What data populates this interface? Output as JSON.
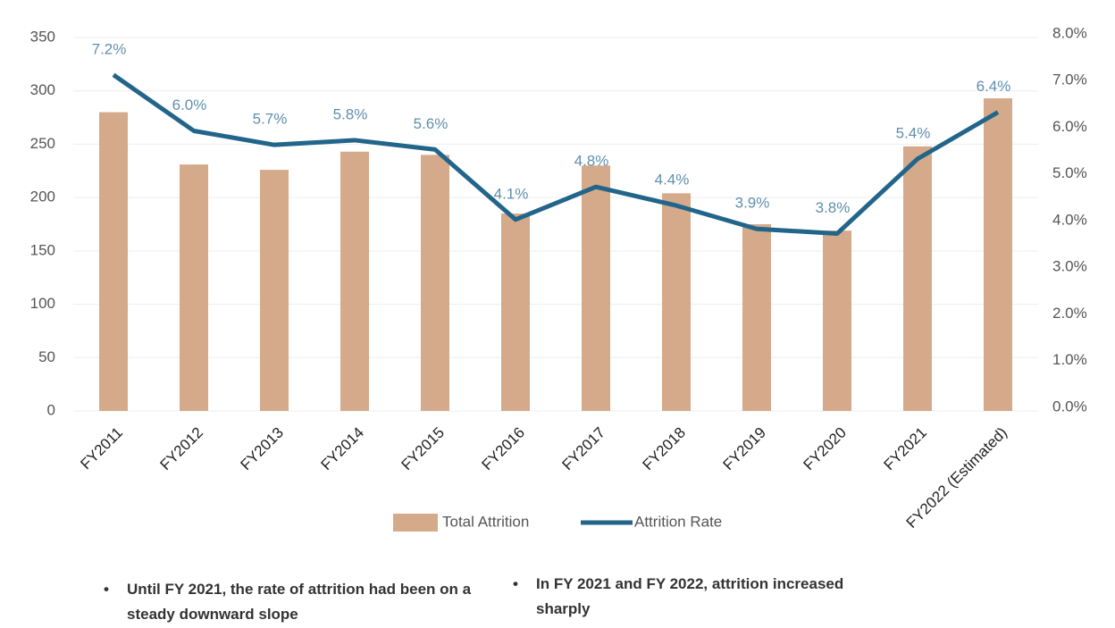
{
  "chart_data": {
    "type": "bar_line",
    "categories": [
      "FY2011",
      "FY2012",
      "FY2013",
      "FY2014",
      "FY2015",
      "FY2016",
      "FY2017",
      "FY2018",
      "FY2019",
      "FY2020",
      "FY2021",
      "FY2022 (Estimated)"
    ],
    "series": [
      {
        "name": "Total Attrition",
        "type": "bar",
        "color": "#d5aa8a",
        "values": [
          280,
          231,
          226,
          243,
          240,
          185,
          230,
          204,
          175,
          169,
          248,
          293
        ]
      },
      {
        "name": "Attrition Rate",
        "type": "line",
        "axis": "y2",
        "color": "#22658a",
        "values": [
          7.2,
          6.0,
          5.7,
          5.8,
          5.6,
          4.1,
          4.8,
          4.4,
          3.9,
          3.8,
          5.4,
          6.4
        ],
        "value_labels": [
          "7.2%",
          "6.0%",
          "5.7%",
          "5.8%",
          "5.6%",
          "4.1%",
          "4.8%",
          "4.4%",
          "3.9%",
          "3.8%",
          "5.4%",
          "6.4%"
        ]
      }
    ],
    "ylim": [
      0,
      350
    ],
    "yticks": [
      0,
      50,
      100,
      150,
      200,
      250,
      300,
      350
    ],
    "y2lim": [
      0,
      8
    ],
    "y2ticks": [
      {
        "value": 0,
        "label": "0.0%"
      },
      {
        "value": 1,
        "label": "1.0%"
      },
      {
        "value": 2,
        "label": "2.0%"
      },
      {
        "value": 3,
        "label": "3.0%"
      },
      {
        "value": 4,
        "label": "4.0%"
      },
      {
        "value": 5,
        "label": "5.0%"
      },
      {
        "value": 6,
        "label": "6.0%"
      },
      {
        "value": 7,
        "label": "7.0%"
      },
      {
        "value": 8,
        "label": "8.0%"
      }
    ],
    "grid": true,
    "legend": "bottom",
    "annotations": [
      "Until FY 2021, the rate of attrition had been on a steady downward slope",
      "In FY 2021 and FY 2022, attrition increased sharply"
    ]
  }
}
